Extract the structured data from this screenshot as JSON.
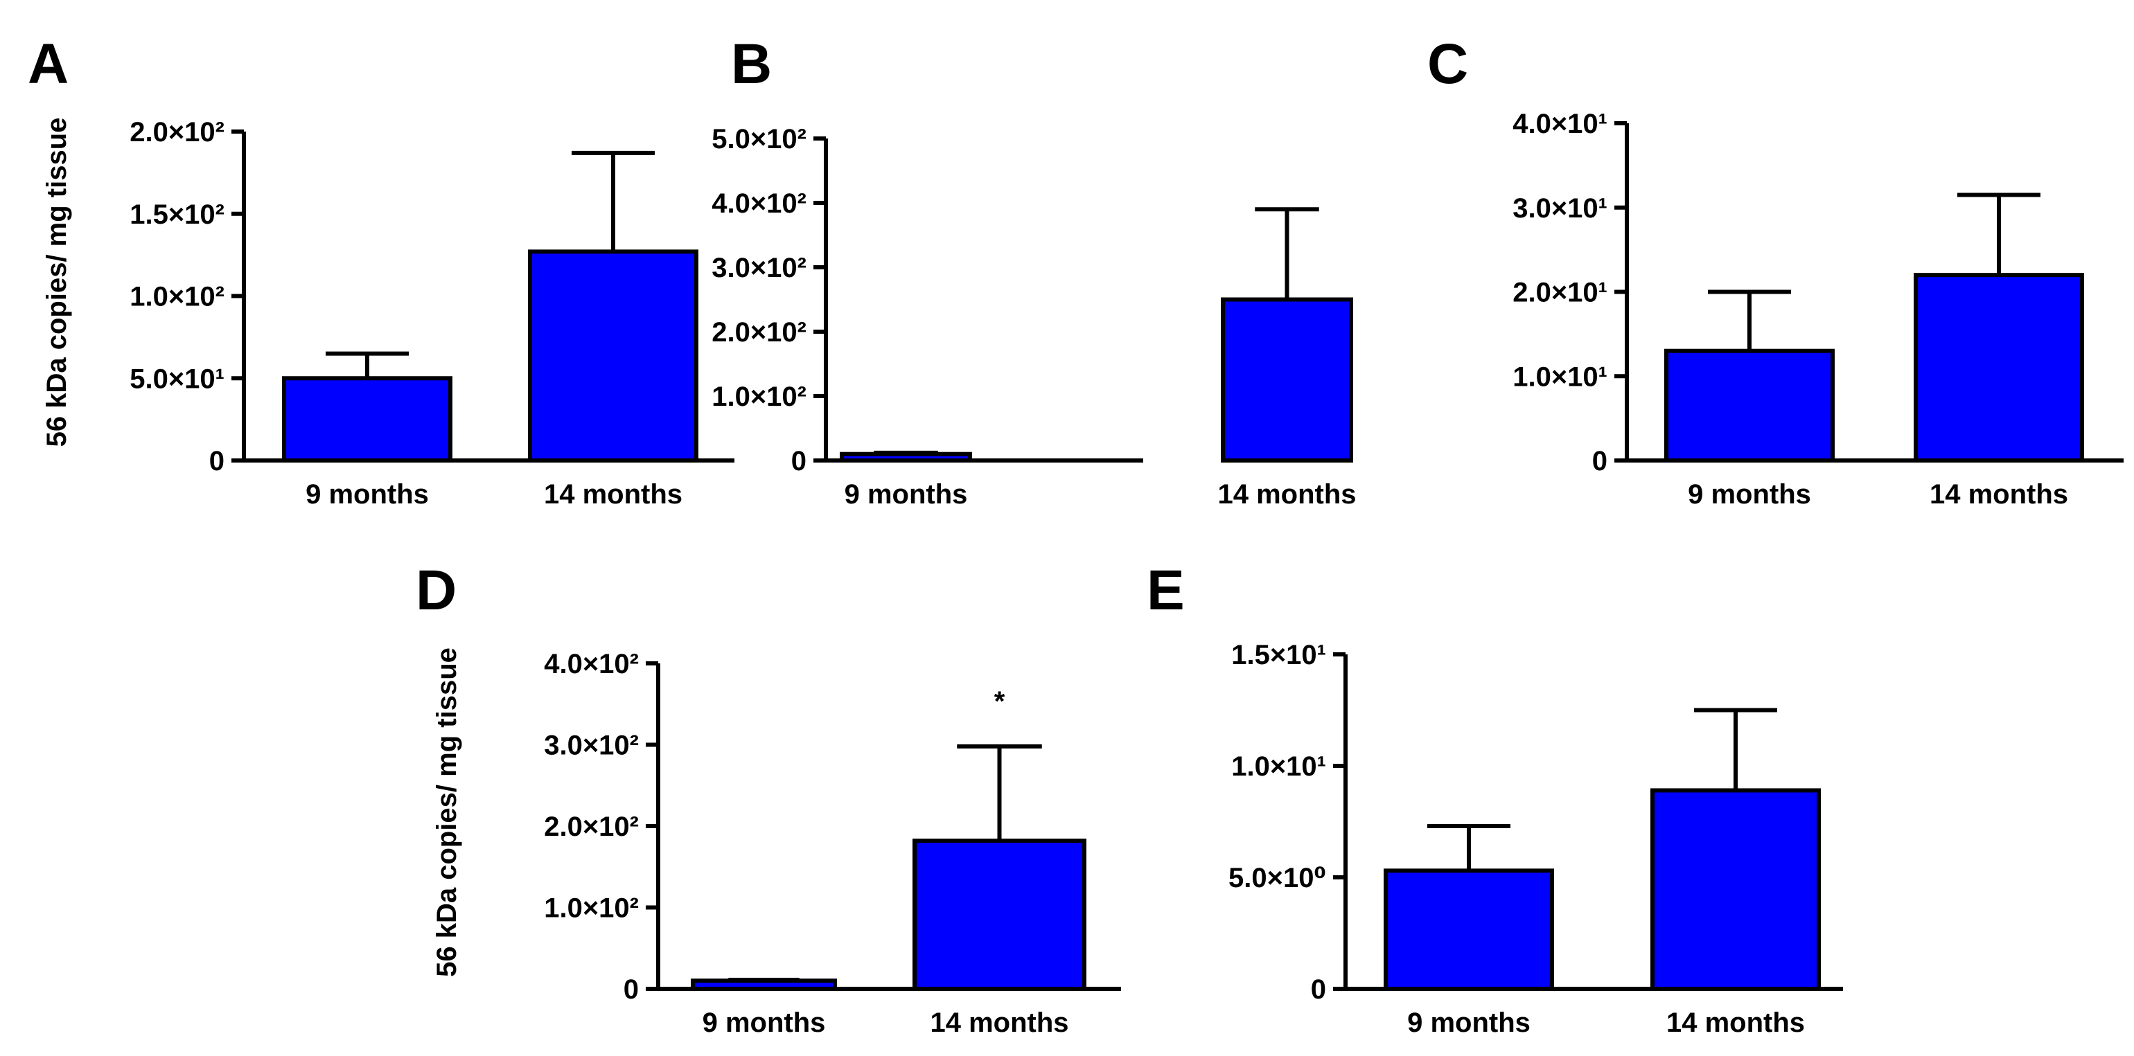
{
  "figure": {
    "colors": {
      "bar": "#0000ff",
      "stroke": "#000000",
      "background": "#ffffff"
    }
  },
  "chart_data": [
    {
      "panel": "A",
      "type": "bar",
      "categories": [
        "9 months",
        "14 months"
      ],
      "values": [
        50,
        127
      ],
      "errors": [
        15,
        60
      ],
      "ylim": [
        0,
        200
      ],
      "yticks": [
        {
          "value": 0,
          "label": "0"
        },
        {
          "value": 50,
          "label": "5.0×10¹"
        },
        {
          "value": 100,
          "label": "1.0×10²"
        },
        {
          "value": 150,
          "label": "1.5×10²"
        },
        {
          "value": 200,
          "label": "2.0×10²"
        }
      ],
      "ylabel": "56 kDa copies/ mg tissue",
      "annotations": []
    },
    {
      "panel": "B",
      "type": "bar",
      "categories": [
        "9 months",
        "14 months"
      ],
      "values": [
        10,
        250
      ],
      "errors": [
        2,
        140
      ],
      "ylim": [
        0,
        500
      ],
      "yticks": [
        {
          "value": 0,
          "label": "0"
        },
        {
          "value": 100,
          "label": "1.0×10²"
        },
        {
          "value": 200,
          "label": "2.0×10²"
        },
        {
          "value": 300,
          "label": "3.0×10²"
        },
        {
          "value": 400,
          "label": "4.0×10²"
        },
        {
          "value": 500,
          "label": "5.0×10²"
        }
      ],
      "ylabel": "",
      "annotations": []
    },
    {
      "panel": "C",
      "type": "bar",
      "categories": [
        "9 months",
        "14 months"
      ],
      "values": [
        13,
        22
      ],
      "errors": [
        7,
        9.5
      ],
      "ylim": [
        0,
        40
      ],
      "yticks": [
        {
          "value": 0,
          "label": "0"
        },
        {
          "value": 10,
          "label": "1.0×10¹"
        },
        {
          "value": 20,
          "label": "2.0×10¹"
        },
        {
          "value": 30,
          "label": "3.0×10¹"
        },
        {
          "value": 40,
          "label": "4.0×10¹"
        }
      ],
      "ylabel": "",
      "annotations": []
    },
    {
      "panel": "D",
      "type": "bar",
      "categories": [
        "9 months",
        "14 months"
      ],
      "values": [
        10,
        182
      ],
      "errors": [
        1,
        116
      ],
      "ylim": [
        0,
        400
      ],
      "yticks": [
        {
          "value": 0,
          "label": "0"
        },
        {
          "value": 100,
          "label": "1.0×10²"
        },
        {
          "value": 200,
          "label": "2.0×10²"
        },
        {
          "value": 300,
          "label": "3.0×10²"
        },
        {
          "value": 400,
          "label": "4.0×10²"
        }
      ],
      "ylabel": "56 kDa copies/ mg tissue",
      "annotations": [
        {
          "category": "14 months",
          "text": "*"
        }
      ]
    },
    {
      "panel": "E",
      "type": "bar",
      "categories": [
        "9 months",
        "14 months"
      ],
      "values": [
        5.3,
        8.9
      ],
      "errors": [
        2.0,
        3.6
      ],
      "ylim": [
        0,
        15
      ],
      "yticks": [
        {
          "value": 0,
          "label": "0"
        },
        {
          "value": 5,
          "label": "5.0×10⁰"
        },
        {
          "value": 10,
          "label": "1.0×10¹"
        },
        {
          "value": 15,
          "label": "1.5×10¹"
        }
      ],
      "ylabel": "",
      "annotations": []
    }
  ]
}
